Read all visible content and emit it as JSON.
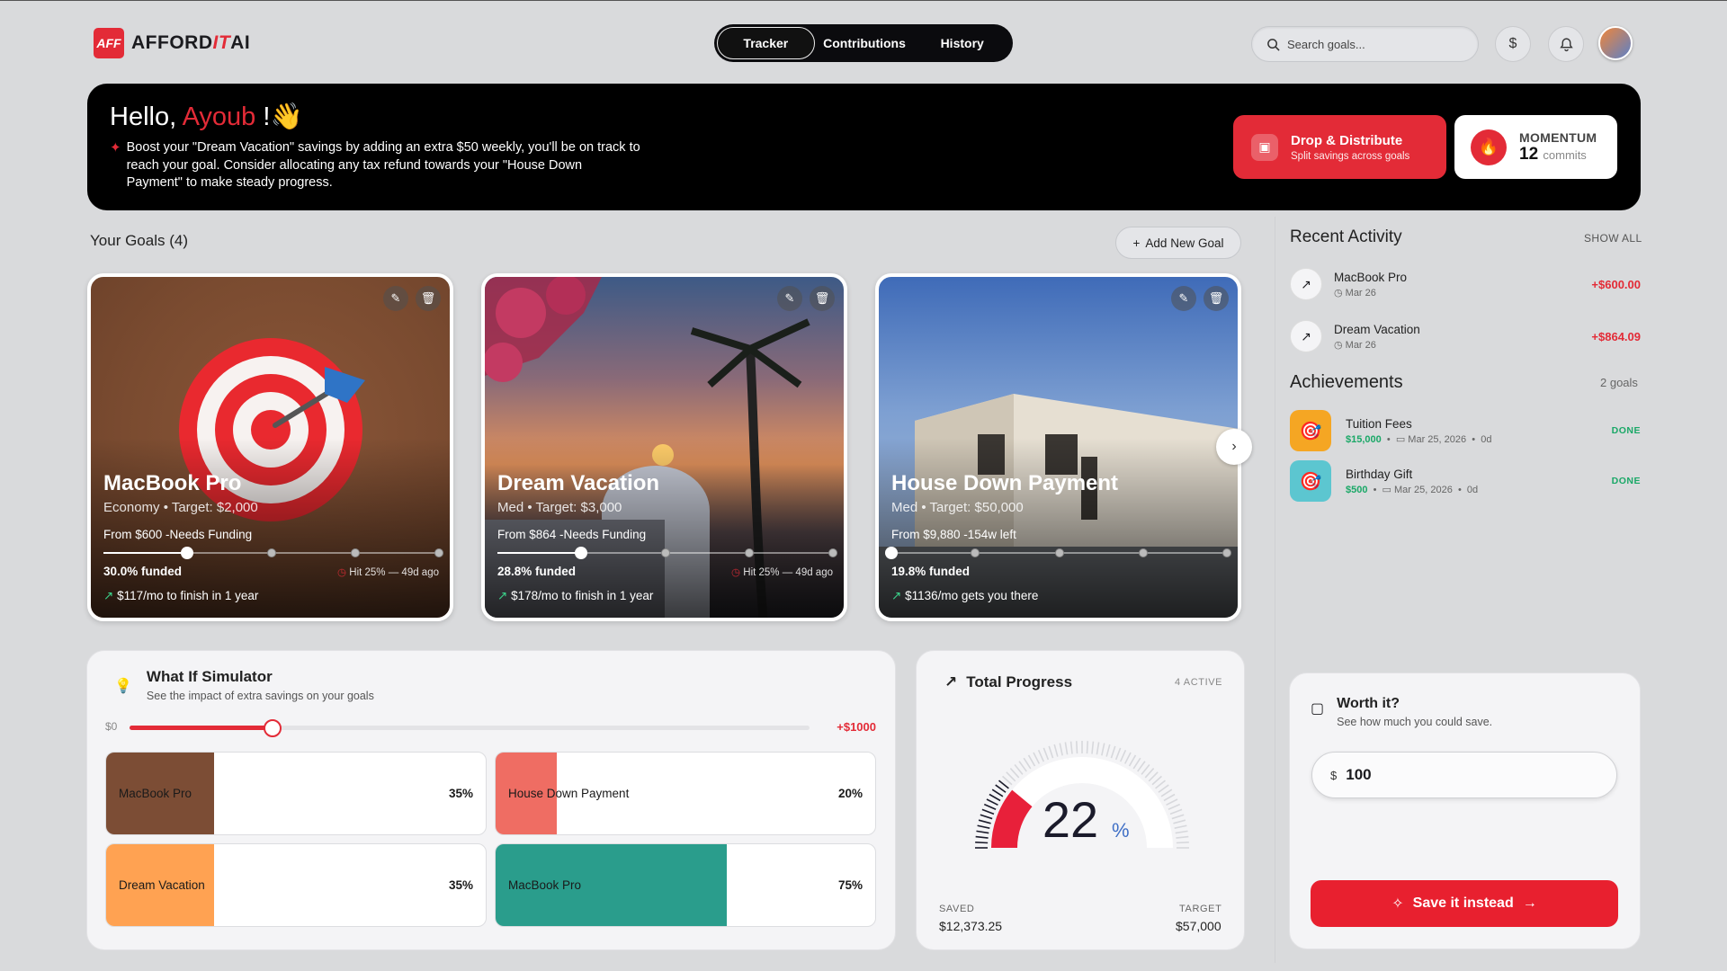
{
  "brand": {
    "mark": "AFF",
    "name_a": "AFFORD",
    "name_b": "IT",
    "name_c": "AI"
  },
  "nav": {
    "tabs": [
      "Tracker",
      "Contributions",
      "History"
    ],
    "active": 0
  },
  "search": {
    "placeholder": "Search goals..."
  },
  "header_icons": [
    "dollar-icon",
    "bell-icon"
  ],
  "banner": {
    "greeting": "Hello, ",
    "name": "Ayoub",
    "exclaim": " !",
    "wave": "👋",
    "tip": "Boost your \"Dream Vacation\" savings by adding an extra $50 weekly, you'll be on track to reach your goal. Consider allocating any tax refund towards your \"House Down Payment\" to make steady progress.",
    "drop_title": "Drop & Distribute",
    "drop_sub": "Split savings across goals",
    "momentum_label": "MOMENTUM",
    "momentum_value": "12",
    "momentum_unit": "commits"
  },
  "goals": {
    "title": "Your Goals (4)",
    "add_label": "Add New Goal",
    "cards": [
      {
        "title": "MacBook Pro",
        "sub": "Economy • Target: $2,000",
        "from": "From $600 -Needs Funding",
        "funded": "30.0% funded",
        "hit": "Hit 25% — 49d ago",
        "monthly": "$117/mo to finish in 1 year",
        "progress": 0.25
      },
      {
        "title": "Dream Vacation",
        "sub": "Med • Target: $3,000",
        "from": "From $864 -Needs Funding",
        "funded": "28.8% funded",
        "hit": "Hit 25% — 49d ago",
        "monthly": "$178/mo to finish in 1 year",
        "progress": 0.25
      },
      {
        "title": "House Down Payment",
        "sub": "Med • Target: $50,000",
        "from": "From $9,880 -154w left",
        "funded": "19.8% funded",
        "hit": "",
        "monthly": "$1136/mo gets you there",
        "progress": 0.0
      }
    ]
  },
  "recent": {
    "title": "Recent Activity",
    "show_all": "SHOW ALL",
    "items": [
      {
        "name": "MacBook Pro",
        "date": "Mar 26",
        "amount": "+$600.00"
      },
      {
        "name": "Dream Vacation",
        "date": "Mar 26",
        "amount": "+$864.09"
      }
    ]
  },
  "achievements": {
    "title": "Achievements",
    "count": "2 goals",
    "items": [
      {
        "name": "Tuition Fees",
        "amount": "$15,000",
        "date": "Mar 25, 2026",
        "days": "0d",
        "status": "DONE",
        "color": "#f5a623"
      },
      {
        "name": "Birthday Gift",
        "amount": "$500",
        "date": "Mar 25, 2026",
        "days": "0d",
        "status": "DONE",
        "color": "#5cc6d0"
      }
    ]
  },
  "simulator": {
    "title": "What If Simulator",
    "sub": "See the impact of extra savings on your goals",
    "min_label": "$0",
    "max_label": "+$1000",
    "value_fraction": 0.21,
    "tiles": [
      {
        "name": "MacBook Pro",
        "pct": "35%",
        "fill": 0.285,
        "color": "#7c4d35"
      },
      {
        "name": "House Down Payment",
        "pct": "20%",
        "fill": 0.16,
        "color": "#ef6d63"
      },
      {
        "name": "Dream Vacation",
        "pct": "35%",
        "fill": 0.285,
        "color": "#ffa252"
      },
      {
        "name": "MacBook Pro",
        "pct": "75%",
        "fill": 0.61,
        "color": "#2a9d8c"
      }
    ]
  },
  "total_progress": {
    "title": "Total Progress",
    "active": "4 ACTIVE",
    "percent": "22",
    "percent_sign": "%",
    "value": 0.22,
    "saved_label": "SAVED",
    "saved": "$12,373.25",
    "target_label": "TARGET",
    "target": "$57,000"
  },
  "worth": {
    "title": "Worth it?",
    "sub": "See how much you could save.",
    "currency": "$",
    "value": "100",
    "button": "Save it instead"
  }
}
